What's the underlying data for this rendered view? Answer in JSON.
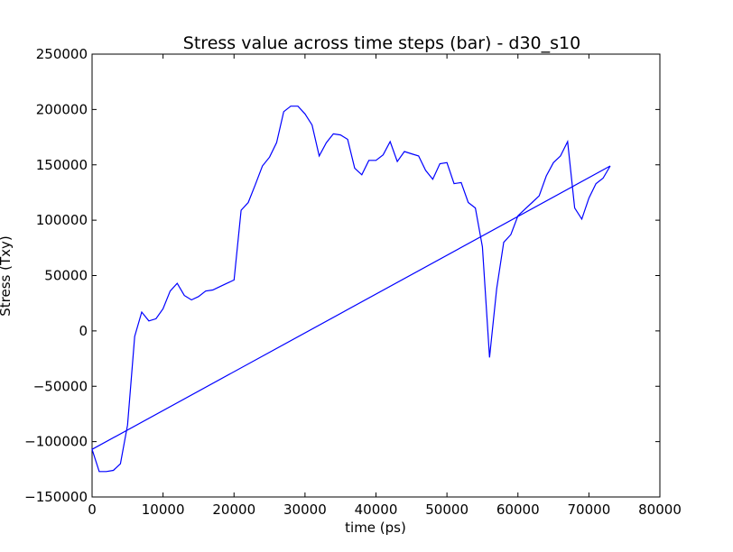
{
  "chart_data": {
    "type": "line",
    "title": "Stress value across time steps (bar) - d30_s10",
    "xlabel": "time (ps)",
    "ylabel": "Stress (Txy)",
    "xlim": [
      0,
      80000
    ],
    "ylim": [
      -150000,
      250000
    ],
    "xticks": [
      0,
      10000,
      20000,
      30000,
      40000,
      50000,
      60000,
      70000,
      80000
    ],
    "yticks": [
      -150000,
      -100000,
      -50000,
      0,
      50000,
      100000,
      150000,
      200000,
      250000
    ],
    "grid": false,
    "line_color": "#0000ff",
    "series": [
      {
        "x": [
          73000,
          0,
          1000,
          2000,
          3000,
          4000,
          5000,
          6000,
          7000,
          8000,
          9000,
          10000,
          11000,
          12000,
          13000,
          14000,
          15000,
          16000,
          17000,
          18000,
          19000,
          20000,
          21000,
          22000,
          23000,
          24000,
          25000,
          26000,
          27000,
          28000,
          29000,
          30000,
          31000,
          32000,
          33000,
          34000,
          35000,
          36000,
          37000,
          38000,
          39000,
          40000,
          41000,
          42000,
          43000,
          44000,
          45000,
          46000,
          47000,
          48000,
          49000,
          50000,
          51000,
          52000,
          53000,
          54000,
          55000,
          56000,
          57000,
          58000,
          59000,
          60000,
          61000,
          62000,
          63000,
          64000,
          65000,
          66000,
          67000,
          68000,
          69000,
          70000,
          71000,
          72000,
          73000
        ],
        "y": [
          149000,
          -107000,
          -127000,
          -127000,
          -126000,
          -120000,
          -85000,
          -5000,
          17000,
          9000,
          11000,
          20000,
          36000,
          43000,
          32000,
          28000,
          31000,
          36000,
          37000,
          40000,
          43000,
          46000,
          109000,
          116000,
          132000,
          149000,
          157000,
          170000,
          198000,
          203000,
          203000,
          196000,
          186000,
          158000,
          170000,
          178000,
          177000,
          173000,
          147000,
          141000,
          154000,
          154000,
          159000,
          171000,
          153000,
          162000,
          160000,
          158000,
          145000,
          137000,
          151000,
          152000,
          133000,
          134000,
          116000,
          111000,
          76000,
          -24000,
          38000,
          80000,
          87000,
          104000,
          110000,
          116000,
          122000,
          140000,
          152000,
          158000,
          171000,
          111000,
          101000,
          120000,
          133000,
          138000,
          149000
        ]
      }
    ]
  }
}
